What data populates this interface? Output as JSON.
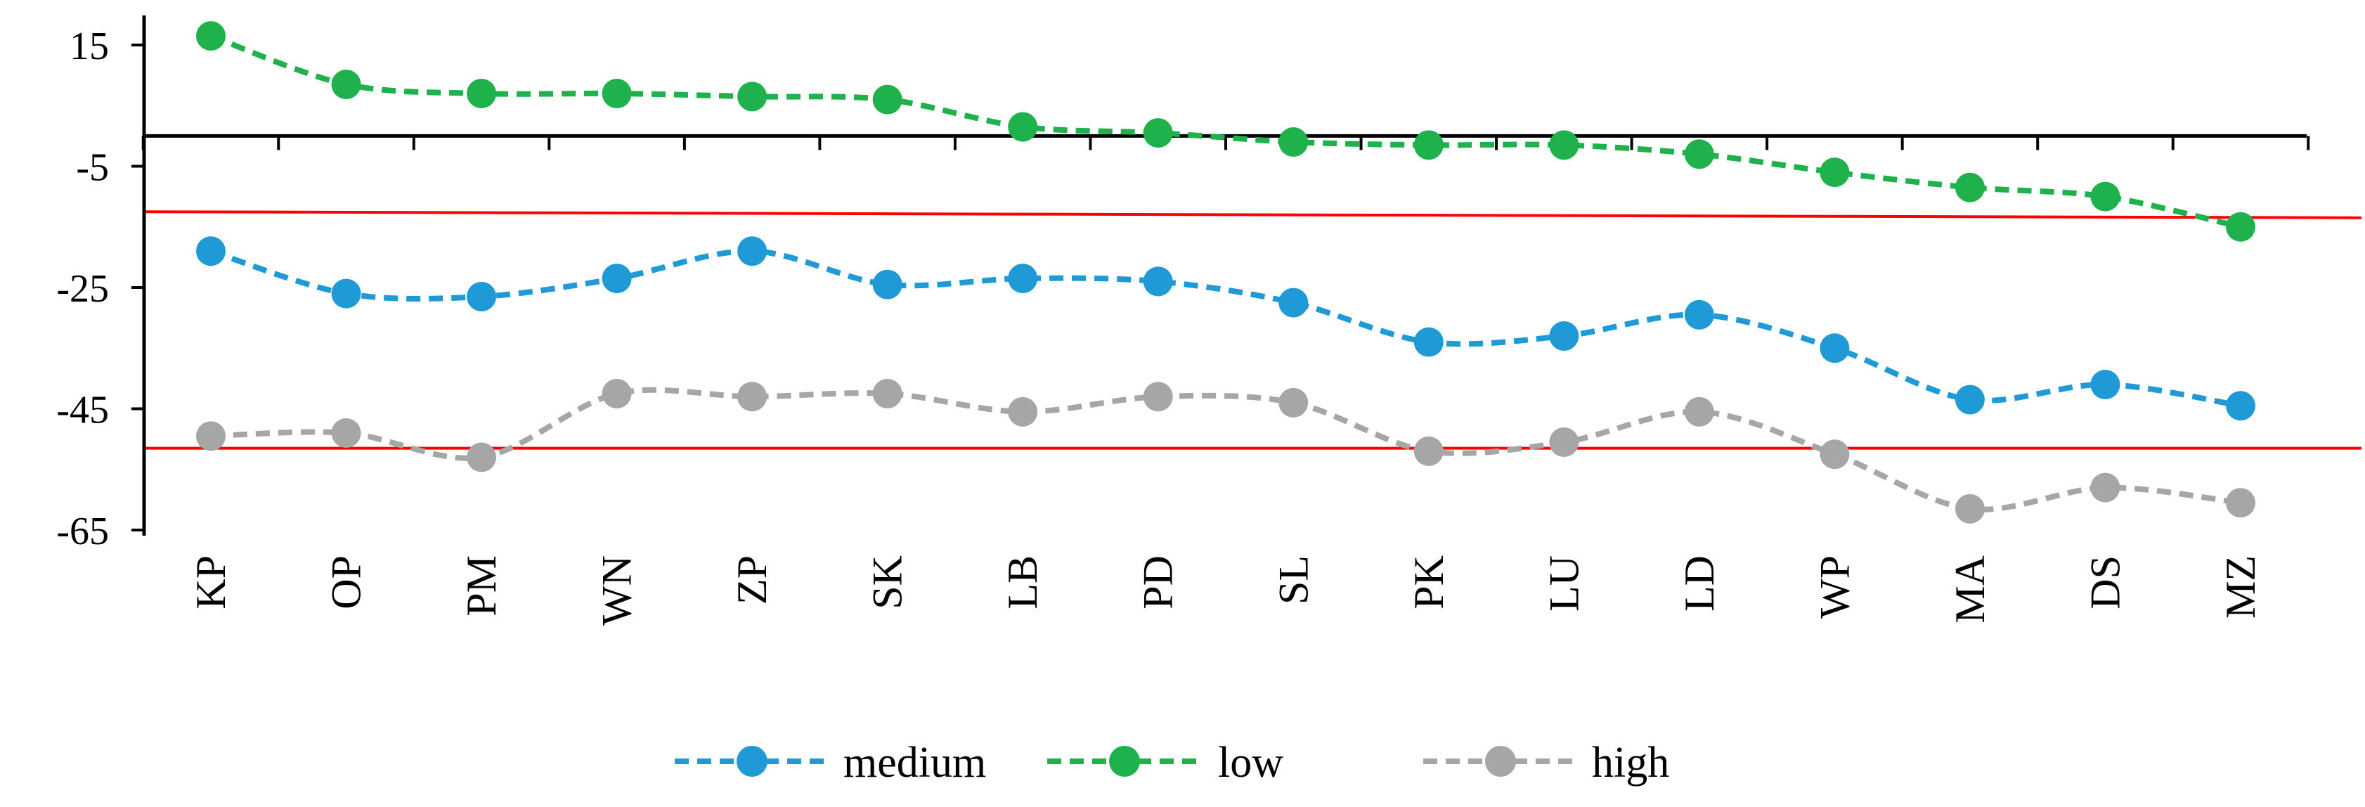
{
  "chart_data": {
    "type": "line",
    "title": "",
    "xlabel": "",
    "ylabel": "",
    "categories": [
      "KP",
      "OP",
      "PM",
      "WN",
      "ZP",
      "SK",
      "LB",
      "PD",
      "SL",
      "PK",
      "LU",
      "LD",
      "WP",
      "MA",
      "DS",
      "MZ"
    ],
    "y_ticks": [
      15,
      -5,
      -25,
      -45,
      -65
    ],
    "y_tick_labels": [
      "15",
      "-5",
      "-25",
      "-45",
      "-65"
    ],
    "ylim": [
      -65,
      20
    ],
    "x_axis_at_y": 0,
    "grid": false,
    "legend_position": "bottom",
    "series": [
      {
        "name": "medium",
        "color": "#1f9ad6",
        "line_style": "dashed",
        "marker": "circle",
        "values": [
          -19,
          -26,
          -26.5,
          -23.5,
          -19,
          -24.5,
          -23.5,
          -24,
          -27.5,
          -34,
          -33,
          -29.5,
          -35,
          -43.5,
          -41,
          -44.5
        ]
      },
      {
        "name": "low",
        "color": "#1fb14b",
        "line_style": "dashed",
        "marker": "circle",
        "values": [
          16.5,
          8.5,
          7,
          7,
          6.5,
          6,
          1.5,
          0.5,
          -1,
          -1.5,
          -1.5,
          -3,
          -6,
          -8.5,
          -10,
          -15
        ]
      },
      {
        "name": "high",
        "color": "#a6a6a6",
        "line_style": "dashed",
        "marker": "circle",
        "values": [
          -49.5,
          -49,
          -53,
          -42.5,
          -43,
          -42.5,
          -45.5,
          -43,
          -44,
          -52,
          -50.5,
          -45.5,
          -52.5,
          -61.5,
          -58,
          -60.5
        ]
      }
    ],
    "reference_lines": [
      {
        "color": "#ff0000",
        "y_start": -12.5,
        "y_end": -13.5
      },
      {
        "color": "#ff0000",
        "y_start": -51.5,
        "y_end": -51.5
      }
    ]
  }
}
